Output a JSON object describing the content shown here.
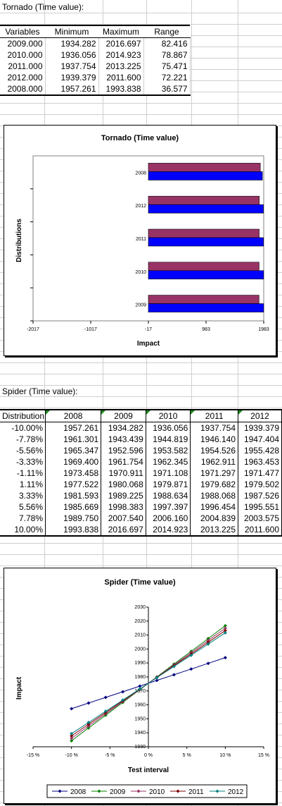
{
  "tornado_title": "Tornado (Time value):",
  "tornado_table": {
    "headers": [
      "Variables",
      "Minimum",
      "Maximum",
      "Range"
    ],
    "rows": [
      [
        "2009.000",
        "1934.282",
        "2016.697",
        "82.416"
      ],
      [
        "2010.000",
        "1936.056",
        "2014.923",
        "78.867"
      ],
      [
        "2011.000",
        "1937.754",
        "2013.225",
        "75.471"
      ],
      [
        "2012.000",
        "1939.379",
        "2011.600",
        "72.221"
      ],
      [
        "2008.000",
        "1957.261",
        "1993.838",
        "36.577"
      ]
    ]
  },
  "spider_title": "Spider (Time value):",
  "spider_table": {
    "headers": [
      "Distribution",
      "2008",
      "2009",
      "2010",
      "2011",
      "2012"
    ],
    "rows": [
      [
        "-10.00%",
        "1957.261",
        "1934.282",
        "1936.056",
        "1937.754",
        "1939.379"
      ],
      [
        "-7.78%",
        "1961.301",
        "1943.439",
        "1944.819",
        "1946.140",
        "1947.404"
      ],
      [
        "-5.56%",
        "1965.347",
        "1952.596",
        "1953.582",
        "1954.526",
        "1955.428"
      ],
      [
        "-3.33%",
        "1969.400",
        "1961.754",
        "1962.345",
        "1962.911",
        "1963.453"
      ],
      [
        "-1.11%",
        "1973.458",
        "1970.911",
        "1971.108",
        "1971.297",
        "1971.477"
      ],
      [
        "1.11%",
        "1977.522",
        "1980.068",
        "1979.871",
        "1979.682",
        "1979.502"
      ],
      [
        "3.33%",
        "1981.593",
        "1989.225",
        "1988.634",
        "1988.068",
        "1987.526"
      ],
      [
        "5.56%",
        "1985.669",
        "1998.383",
        "1997.397",
        "1996.454",
        "1995.551"
      ],
      [
        "7.78%",
        "1989.750",
        "2007.540",
        "2006.160",
        "2004.839",
        "2003.575"
      ],
      [
        "10.00%",
        "1993.838",
        "2016.697",
        "2014.923",
        "2013.225",
        "2011.600"
      ]
    ]
  },
  "chart_data": [
    {
      "type": "bar",
      "orientation": "horizontal",
      "title": "Tornado (Time value)",
      "xlabel": "Impact",
      "ylabel": "Distributions",
      "categories": [
        "2009",
        "2010",
        "2011",
        "2012",
        "2008"
      ],
      "xticks": [
        "-2017",
        "-1017",
        "-17",
        "983",
        "1983"
      ],
      "xlim": [
        -2017,
        2017
      ],
      "series": [
        {
          "values": [
            1934.282,
            1936.056,
            1937.754,
            1939.379,
            1957.261
          ],
          "color": "#993366"
        },
        {
          "values": [
            2016.697,
            2014.923,
            2013.225,
            2011.6,
            1993.838
          ],
          "color": "#0000ff"
        }
      ],
      "legend": "none"
    },
    {
      "type": "line",
      "title": "Spider (Time value)",
      "xlabel": "Test interval",
      "ylabel": "Impact",
      "x": [
        -10.0,
        -7.78,
        -5.56,
        -3.33,
        -1.11,
        1.11,
        3.33,
        5.56,
        7.78,
        10.0
      ],
      "xticks": [
        "-15 %",
        "-10 %",
        "-5 %",
        "0 %",
        "5 %",
        "10 %",
        "15 %"
      ],
      "xlim": [
        -15,
        15
      ],
      "ylim": [
        1930,
        2030
      ],
      "yticks": [
        "1930",
        "1940",
        "1950",
        "1960",
        "1970",
        "1980",
        "1990",
        "2000",
        "2010",
        "2020",
        "2030"
      ],
      "series": [
        {
          "name": "2008",
          "color": "#000080",
          "values": [
            1957.261,
            1961.301,
            1965.347,
            1969.4,
            1973.458,
            1977.522,
            1981.593,
            1985.669,
            1989.75,
            1993.838
          ]
        },
        {
          "name": "2009",
          "color": "#008000",
          "values": [
            1934.282,
            1943.439,
            1952.596,
            1961.754,
            1970.911,
            1980.068,
            1989.225,
            1998.383,
            2007.54,
            2016.697
          ]
        },
        {
          "name": "2010",
          "color": "#993366",
          "values": [
            1936.056,
            1944.819,
            1953.582,
            1962.345,
            1971.108,
            1979.871,
            1988.634,
            1997.397,
            2006.16,
            2014.923
          ]
        },
        {
          "name": "2011",
          "color": "#800000",
          "values": [
            1937.754,
            1946.14,
            1954.526,
            1962.911,
            1971.297,
            1979.682,
            1988.068,
            1996.454,
            2004.839,
            2013.225
          ]
        },
        {
          "name": "2012",
          "color": "#008080",
          "values": [
            1939.379,
            1947.404,
            1955.428,
            1963.453,
            1971.477,
            1979.502,
            1987.526,
            1995.551,
            2003.575,
            2011.6
          ]
        }
      ],
      "legend": "bottom"
    }
  ]
}
